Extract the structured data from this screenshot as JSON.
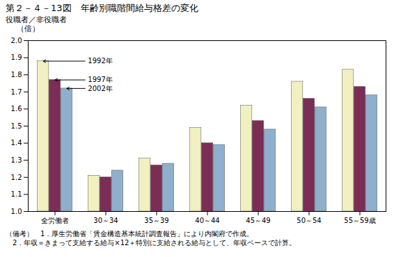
{
  "chart_data": {
    "type": "bar",
    "title": "第２－４－13図　年齢別職階間給与格差の変化",
    "ylabel": "役職者／非役職者",
    "ylabel_unit": "（倍）",
    "categories": [
      "全労働者",
      "30～34",
      "35～39",
      "40～44",
      "45～49",
      "50～54",
      "55～59歳"
    ],
    "series": [
      {
        "name": "1992年",
        "color": "#f0f0c0",
        "values": [
          1.88,
          1.21,
          1.31,
          1.49,
          1.62,
          1.76,
          1.83
        ]
      },
      {
        "name": "1997年",
        "color": "#7b2d55",
        "values": [
          1.77,
          1.2,
          1.27,
          1.4,
          1.53,
          1.66,
          1.73
        ]
      },
      {
        "name": "2002年",
        "color": "#8fb0cc",
        "values": [
          1.72,
          1.24,
          1.28,
          1.39,
          1.48,
          1.61,
          1.68
        ]
      }
    ],
    "ylim": [
      1.0,
      2.0
    ],
    "yticks": [
      {
        "value": 1.0,
        "label": "1.0"
      },
      1.1,
      1.2,
      1.3,
      1.4,
      1.5,
      1.6,
      1.7,
      1.8,
      1.9,
      {
        "value": 2.0,
        "label": "2.0"
      }
    ],
    "annotations": [
      {
        "text": "1992年",
        "series": "1992年",
        "category": "全労働者"
      },
      {
        "text": "1997年",
        "series": "1997年",
        "category": "全労働者"
      },
      {
        "text": "2002年",
        "series": "2002年",
        "category": "全労働者"
      }
    ],
    "notes": [
      "（備考）　1．厚生労働省「賃金構造基本統計調査報告」により内閣府で作成。",
      "　2．年収＝きまって支給する給与×12＋特別に支給される給与として、年収ベースで計算。"
    ]
  }
}
